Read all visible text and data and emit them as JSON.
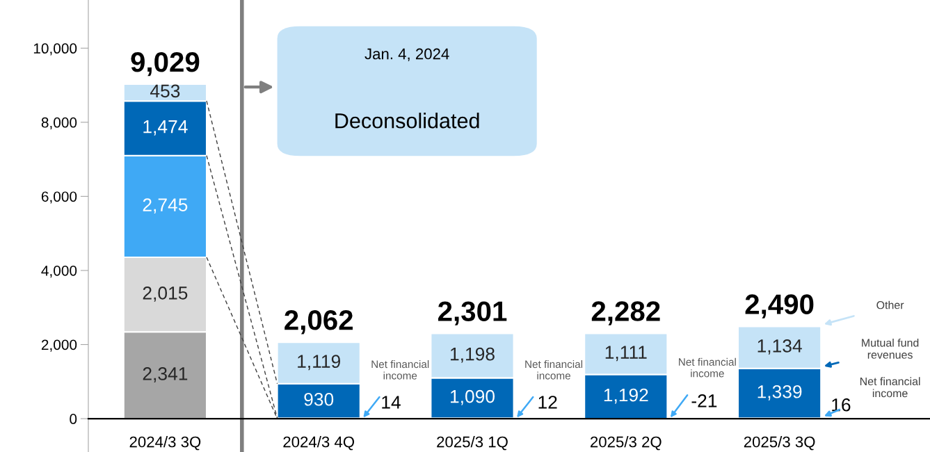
{
  "chart_data": {
    "type": "bar",
    "stacked": true,
    "categories": [
      "2024/3 3Q",
      "2024/3 4Q",
      "2025/3 1Q",
      "2025/3 2Q",
      "2025/3 3Q"
    ],
    "series": [
      {
        "color": "#a6a6a6",
        "values": [
          2341,
          null,
          null,
          null,
          null
        ],
        "value_labels": [
          "2,341",
          null,
          null,
          null,
          null
        ]
      },
      {
        "color": "#d9d9d9",
        "values": [
          2015,
          null,
          null,
          null,
          null
        ],
        "value_labels": [
          "2,015",
          null,
          null,
          null,
          null
        ]
      },
      {
        "name": "Net financial\nincome",
        "color": "#3fa9f5",
        "values": [
          2745,
          14,
          12,
          -21,
          16
        ],
        "value_labels": [
          "2,745",
          "14",
          "12",
          "-21",
          "16"
        ]
      },
      {
        "name": "Mutual fund\nrevenues",
        "color": "#0068b7",
        "values": [
          1474,
          930,
          1090,
          1192,
          1339
        ],
        "value_labels": [
          "1,474",
          "930",
          "1,090",
          "1,192",
          "1,339"
        ]
      },
      {
        "name": "Other",
        "color": "#c5e3f7",
        "values": [
          453,
          1119,
          1198,
          1111,
          1134
        ],
        "value_labels": [
          "453",
          "1,119",
          "1,198",
          "1,111",
          "1,134"
        ]
      }
    ],
    "totals": [
      "9,029",
      "2,062",
      "2,301",
      "2,282",
      "2,490"
    ],
    "ylim": [
      -900,
      11300
    ],
    "yticks": [
      {
        "value": 0,
        "label": "0"
      },
      {
        "value": 2000,
        "label": "2,000"
      },
      {
        "value": 4000,
        "label": "4,000"
      },
      {
        "value": 6000,
        "label": "6,000"
      },
      {
        "value": 8000,
        "label": "8,000"
      },
      {
        "value": 10000,
        "label": "10,000"
      }
    ],
    "annotations": [
      "Jan. 4, 2024",
      "Deconsolidated",
      "Net financial\nincome",
      "Net financial\nincome",
      "Net financial\nincome"
    ],
    "legend": false
  }
}
